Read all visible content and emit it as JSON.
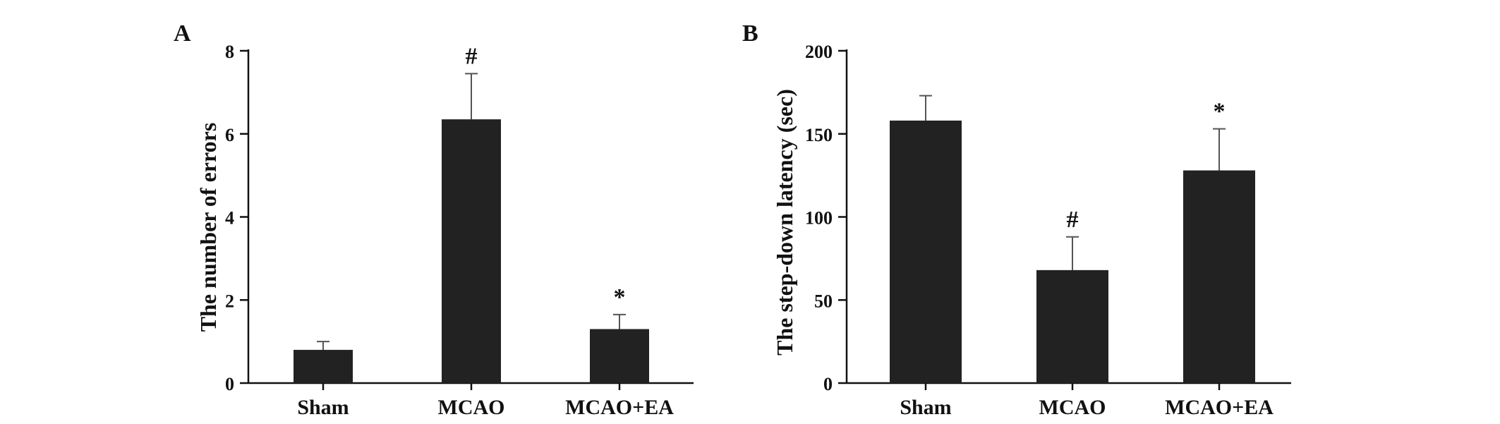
{
  "colors": {
    "bar": "#222222",
    "axis": "#111111",
    "error_bar": "#555555",
    "background": "#ffffff"
  },
  "chart_data": [
    {
      "type": "bar",
      "panel_label": "A",
      "title": "",
      "xlabel": "",
      "ylabel": "The number of errors",
      "categories": [
        "Sham",
        "MCAO",
        "MCAO+EA"
      ],
      "values": [
        0.8,
        6.35,
        1.3
      ],
      "errors": [
        0.2,
        1.1,
        0.35
      ],
      "annotations": [
        "",
        "#",
        "*"
      ],
      "ylim": [
        0,
        8
      ],
      "yticks": [
        0,
        2,
        4,
        6,
        8
      ],
      "grid": false,
      "legend": "none"
    },
    {
      "type": "bar",
      "panel_label": "B",
      "title": "",
      "xlabel": "",
      "ylabel": "The step-down latency (sec)",
      "categories": [
        "Sham",
        "MCAO",
        "MCAO+EA"
      ],
      "values": [
        158,
        68,
        128
      ],
      "errors": [
        15,
        20,
        25
      ],
      "annotations": [
        "",
        "#",
        "*"
      ],
      "ylim": [
        0,
        200
      ],
      "yticks": [
        0,
        50,
        100,
        150,
        200
      ],
      "grid": false,
      "legend": "none"
    }
  ]
}
